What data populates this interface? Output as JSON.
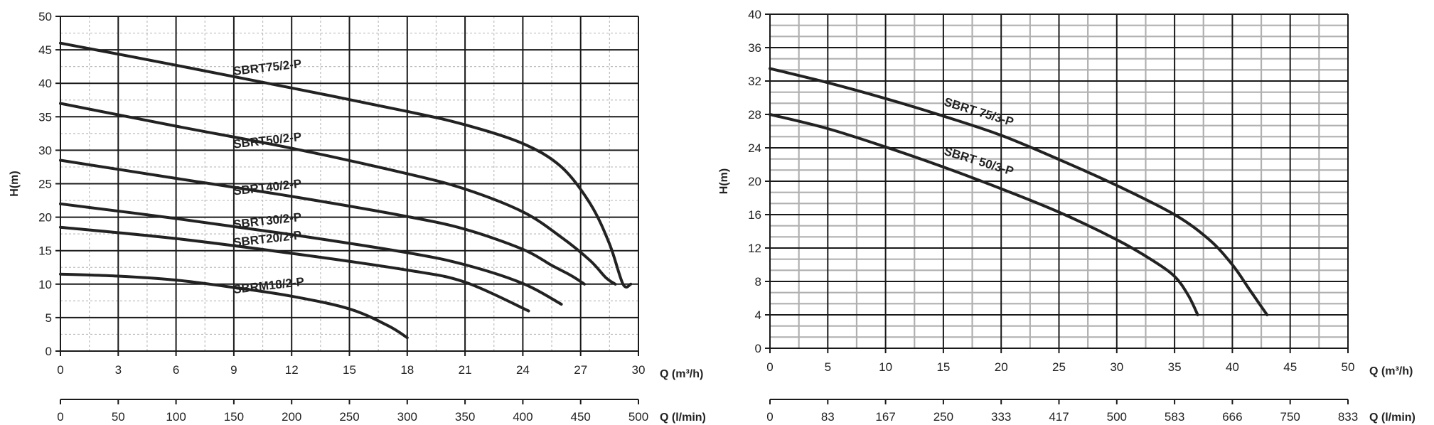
{
  "chart_data": [
    {
      "type": "line",
      "ylabel": "H(m)",
      "xlabel": "Q  (m³/h)",
      "xlabel2": "Q (l/min)",
      "xlim": [
        0,
        30
      ],
      "ylim": [
        0,
        50
      ],
      "x_ticks": [
        "0",
        "3",
        "6",
        "9",
        "12",
        "15",
        "18",
        "21",
        "24",
        "27",
        "30"
      ],
      "x2_ticks": [
        "0",
        "50",
        "100",
        "150",
        "200",
        "250",
        "300",
        "350",
        "400",
        "450",
        "500"
      ],
      "y_ticks": [
        "0",
        "5",
        "10",
        "15",
        "20",
        "25",
        "30",
        "35",
        "40",
        "45",
        "50"
      ],
      "grid": true,
      "series": [
        {
          "name": "SBRT75/2-P",
          "x": [
            0,
            6,
            12,
            18,
            21,
            24,
            26,
            27.5,
            28.5,
            29.2,
            29.6
          ],
          "y": [
            46,
            42.7,
            39.3,
            35.8,
            33.8,
            31,
            27.5,
            22,
            16,
            10,
            10
          ]
        },
        {
          "name": "SBRT50/2-P",
          "x": [
            0,
            6,
            12,
            18,
            21,
            24,
            26,
            27.5,
            28.3,
            28.8
          ],
          "y": [
            37,
            33.6,
            30.3,
            26.5,
            24.2,
            20.8,
            17,
            13.5,
            11,
            10
          ]
        },
        {
          "name": "SBRT40/2-P",
          "x": [
            0,
            6,
            12,
            18,
            21,
            24,
            25.5,
            26.5,
            27.2
          ],
          "y": [
            28.5,
            25.8,
            23.1,
            20.1,
            18.2,
            15.2,
            12.8,
            11.3,
            10
          ]
        },
        {
          "name": "SBRT30/2-P",
          "x": [
            0,
            6,
            12,
            18,
            21,
            24,
            26
          ],
          "y": [
            22,
            19.8,
            17.4,
            14.7,
            12.9,
            10.1,
            7
          ]
        },
        {
          "name": "SBRT20/2-P",
          "x": [
            0,
            6,
            12,
            18,
            21,
            24.3
          ],
          "y": [
            18.5,
            16.8,
            14.6,
            12.1,
            10.3,
            6
          ]
        },
        {
          "name": "SBRM18/2-P",
          "x": [
            0,
            3,
            6,
            9,
            12,
            15,
            17,
            18
          ],
          "y": [
            11.5,
            11.2,
            10.6,
            9.5,
            8.2,
            6.3,
            3.8,
            2
          ]
        }
      ]
    },
    {
      "type": "line",
      "ylabel": "H(m)",
      "xlabel": "Q (m³/h)",
      "xlabel2": "Q (l/min)",
      "xlim": [
        0,
        50
      ],
      "ylim": [
        0,
        40
      ],
      "x_ticks": [
        "0",
        "5",
        "10",
        "15",
        "20",
        "25",
        "30",
        "35",
        "40",
        "45",
        "50"
      ],
      "x2_ticks": [
        "0",
        "83",
        "167",
        "250",
        "333",
        "417",
        "500",
        "583",
        "666",
        "750",
        "833"
      ],
      "y_ticks": [
        "0",
        "4",
        "8",
        "12",
        "16",
        "20",
        "24",
        "28",
        "32",
        "36",
        "40"
      ],
      "grid": true,
      "series": [
        {
          "name": "SBRT 75/3-P",
          "x": [
            0,
            5,
            10,
            15,
            20,
            25,
            30,
            35,
            38,
            40,
            41.5,
            42.5,
            43
          ],
          "y": [
            33.5,
            31.8,
            29.9,
            27.8,
            25.5,
            22.6,
            19.5,
            16,
            13,
            10,
            7,
            5,
            4
          ]
        },
        {
          "name": "SBRT 50/3-P",
          "x": [
            0,
            5,
            10,
            15,
            20,
            25,
            30,
            33,
            35,
            36.2,
            37
          ],
          "y": [
            28,
            26.3,
            24.1,
            21.7,
            19.1,
            16.3,
            13,
            10.6,
            8.6,
            6.3,
            4
          ]
        }
      ]
    }
  ]
}
